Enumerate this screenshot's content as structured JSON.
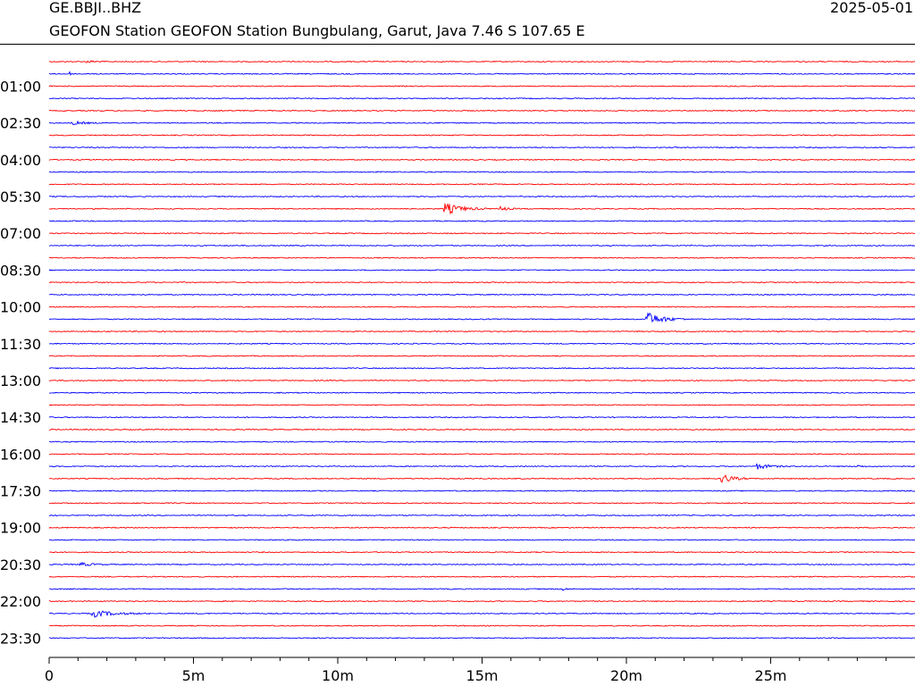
{
  "header": {
    "station_code": "GE.BBJI..BHZ",
    "date": "2025-05-01",
    "description": "GEOFON Station GEOFON Station Bungbulang, Garut, Java  7.46 S 107.65 E"
  },
  "chart_data": {
    "type": "line",
    "plot_kind": "helicorder",
    "title": "",
    "xlabel": "",
    "ylabel": "",
    "x_unit": "minutes",
    "xlim": [
      0,
      30
    ],
    "x_ticks": [
      {
        "value": 0,
        "label": "0"
      },
      {
        "value": 5,
        "label": "5m"
      },
      {
        "value": 10,
        "label": "10m"
      },
      {
        "value": 15,
        "label": "15m"
      },
      {
        "value": 20,
        "label": "20m"
      },
      {
        "value": 25,
        "label": "25m"
      }
    ],
    "x_minor_tick_step": 1,
    "row_count": 48,
    "row_minutes": 30,
    "row_colors": [
      "#ff0000",
      "#0000ff"
    ],
    "y_labels": [
      {
        "row": 2,
        "label": "01:00"
      },
      {
        "row": 5,
        "label": "02:30"
      },
      {
        "row": 8,
        "label": "04:00"
      },
      {
        "row": 11,
        "label": "05:30"
      },
      {
        "row": 14,
        "label": "07:00"
      },
      {
        "row": 17,
        "label": "08:30"
      },
      {
        "row": 20,
        "label": "10:00"
      },
      {
        "row": 23,
        "label": "11:30"
      },
      {
        "row": 26,
        "label": "13:00"
      },
      {
        "row": 29,
        "label": "14:30"
      },
      {
        "row": 32,
        "label": "16:00"
      },
      {
        "row": 35,
        "label": "17:30"
      },
      {
        "row": 38,
        "label": "19:00"
      },
      {
        "row": 41,
        "label": "20:30"
      },
      {
        "row": 44,
        "label": "22:00"
      },
      {
        "row": 47,
        "label": "23:30"
      }
    ],
    "events": [
      {
        "row": 0,
        "minute": 1.3,
        "amplitude": 1.5,
        "duration": 0.8
      },
      {
        "row": 1,
        "minute": 0.7,
        "amplitude": 3,
        "duration": 0.1
      },
      {
        "row": 5,
        "minute": 0.8,
        "amplitude": 2,
        "duration": 1.2
      },
      {
        "row": 12,
        "minute": 13.7,
        "amplitude": 7,
        "duration": 1.5
      },
      {
        "row": 12,
        "minute": 15.6,
        "amplitude": 3,
        "duration": 0.7
      },
      {
        "row": 21,
        "minute": 20.7,
        "amplitude": 8,
        "duration": 1.5
      },
      {
        "row": 33,
        "minute": 24.5,
        "amplitude": 3.5,
        "duration": 1.2
      },
      {
        "row": 33,
        "minute": 28.0,
        "amplitude": 1.5,
        "duration": 0.5
      },
      {
        "row": 34,
        "minute": 23.3,
        "amplitude": 6,
        "duration": 1.0
      },
      {
        "row": 41,
        "minute": 1.0,
        "amplitude": 2.5,
        "duration": 1.2
      },
      {
        "row": 43,
        "minute": 17.8,
        "amplitude": 1.5,
        "duration": 0.4
      },
      {
        "row": 45,
        "minute": 1.5,
        "amplitude": 4,
        "duration": 2.0
      }
    ]
  }
}
